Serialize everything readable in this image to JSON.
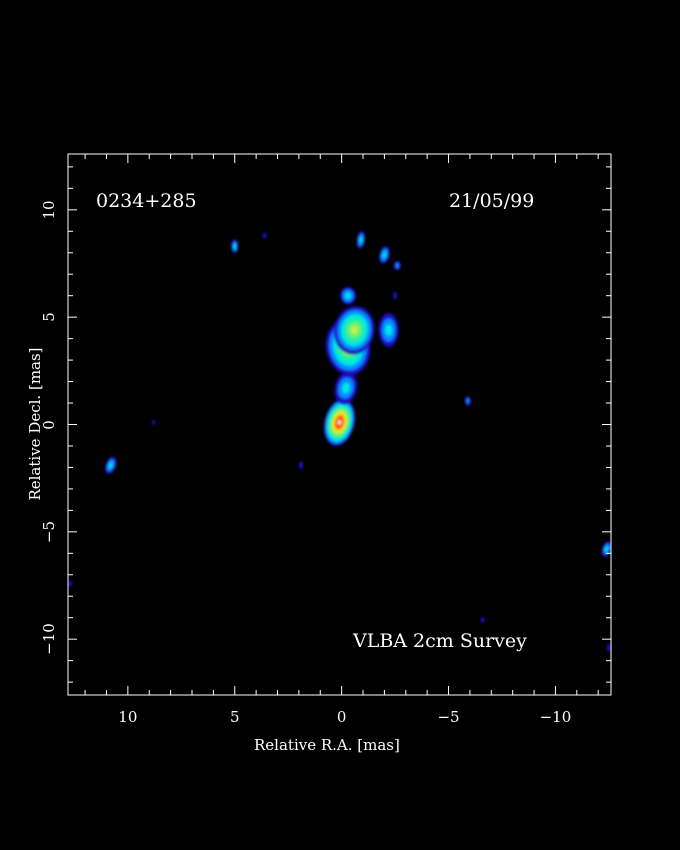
{
  "source": "0234+285",
  "date": "21/05/99",
  "survey": "VLBA 2cm Survey",
  "xlabel": "Relative R.A. [mas]",
  "ylabel": "Relative Decl. [mas]",
  "xlim": [
    12.8,
    -12.6
  ],
  "ylim": [
    -12.6,
    12.6
  ],
  "x_tick_labels": [
    {
      "value": 10,
      "label": "10"
    },
    {
      "value": 5,
      "label": "5"
    },
    {
      "value": 0,
      "label": "0"
    },
    {
      "value": -5,
      "label": "−5"
    },
    {
      "value": -10,
      "label": "−10"
    }
  ],
  "y_tick_labels": [
    {
      "value": 10,
      "label": "10"
    },
    {
      "value": 5,
      "label": "5"
    },
    {
      "value": 0,
      "label": "0"
    },
    {
      "value": -5,
      "label": "−5"
    },
    {
      "value": -10,
      "label": "−10"
    }
  ],
  "colormap": [
    "#1a10c8",
    "#0090ff",
    "#00e8e0",
    "#20f0a0",
    "#70f070",
    "#c8f040",
    "#ffd000",
    "#ff7000",
    "#ff1010",
    "#ffffff"
  ],
  "features": [
    {
      "name": "core",
      "ra": 0.1,
      "dec": 0.1,
      "peak": 1.0
    },
    {
      "name": "inner-jet",
      "ra": -0.2,
      "dec": 1.7,
      "peak": 0.34
    },
    {
      "name": "jet-knot",
      "ra": -0.3,
      "dec": 3.6,
      "peak": 0.62
    },
    {
      "name": "jet-extension",
      "ra": -0.6,
      "dec": 4.4,
      "peak": 0.55
    },
    {
      "name": "jet-east",
      "ra": -2.2,
      "dec": 4.4,
      "peak": 0.34
    },
    {
      "name": "jet-tip",
      "ra": -0.3,
      "dec": 6.0,
      "peak": 0.28
    },
    {
      "name": "blob-north-1",
      "ra": -0.9,
      "dec": 8.6,
      "peak": 0.3
    },
    {
      "name": "blob-north-2",
      "ra": -2.0,
      "dec": 7.9,
      "peak": 0.3
    },
    {
      "name": "blob-north-3",
      "ra": -2.6,
      "dec": 7.4,
      "peak": 0.22
    },
    {
      "name": "spot-1",
      "ra": 5.0,
      "dec": 8.3,
      "peak": 0.28
    },
    {
      "name": "spot-2",
      "ra": 10.8,
      "dec": -1.9,
      "peak": 0.3
    },
    {
      "name": "spot-3",
      "ra": -12.4,
      "dec": -5.8,
      "peak": 0.3
    },
    {
      "name": "spot-4",
      "ra": -5.9,
      "dec": 1.1,
      "peak": 0.22
    },
    {
      "name": "spot-5",
      "ra": 1.9,
      "dec": -1.9,
      "peak": 0.1
    },
    {
      "name": "spot-6",
      "ra": 3.6,
      "dec": 8.8,
      "peak": 0.1
    },
    {
      "name": "spot-7",
      "ra": 8.8,
      "dec": 0.1,
      "peak": 0.08
    },
    {
      "name": "spot-8",
      "ra": -2.5,
      "dec": 6.0,
      "peak": 0.1
    },
    {
      "name": "spot-9",
      "ra": -6.6,
      "dec": -9.1,
      "peak": 0.08
    },
    {
      "name": "spot-10",
      "ra": -12.5,
      "dec": -10.4,
      "peak": 0.08
    },
    {
      "name": "spot-11",
      "ra": 12.7,
      "dec": -7.4,
      "peak": 0.08
    }
  ]
}
